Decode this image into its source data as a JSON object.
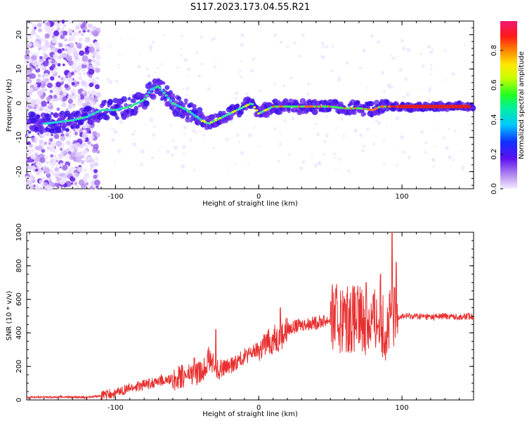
{
  "title": "S117.2023.173.04.55.R21",
  "colors": {
    "snr_line": "#e83030",
    "spectrogram_low": "#a070e0",
    "spectrogram_high": "#e02020"
  },
  "chart_data": [
    {
      "type": "heatmap",
      "title": "S117.2023.173.04.55.R21",
      "xlabel": "Height of straight line (km)",
      "ylabel": "Frequency (Hz)",
      "xlim": [
        -162,
        150
      ],
      "ylim": [
        -25,
        24
      ],
      "xticks": [
        -100,
        0,
        100
      ],
      "yticks": [
        -20,
        -10,
        0,
        10,
        20
      ],
      "grid": false,
      "colorbar": {
        "label": "Normalized spectral amplitude",
        "range": [
          0,
          0.97
        ],
        "ticks": [
          0.0,
          0.2,
          0.4,
          0.6,
          0.8
        ],
        "colormap": "rainbow (purple → blue → cyan → green → yellow → orange → red → pink)"
      },
      "ridge": {
        "x": [
          -160,
          -150,
          -140,
          -130,
          -120,
          -110,
          -100,
          -90,
          -80,
          -75,
          -70,
          -60,
          -50,
          -40,
          -35,
          -30,
          -20,
          -10,
          -5,
          0,
          10,
          20,
          30,
          40,
          50,
          60,
          70,
          80,
          85,
          90,
          95,
          100,
          110,
          120,
          130,
          140,
          150
        ],
        "y": [
          -6,
          -6,
          -5.5,
          -5,
          -4,
          -2,
          -2,
          -1,
          1,
          4,
          5,
          0,
          -2,
          -5,
          -6,
          -5,
          -3,
          -1,
          0,
          -3,
          -1,
          -1,
          -1,
          -1,
          -1,
          -1.5,
          -1.5,
          -2,
          -1,
          -1,
          -1,
          -1,
          -1,
          -1,
          -1,
          -1,
          -1
        ]
      }
    },
    {
      "type": "line",
      "xlabel": "Height of straight line (km)",
      "ylabel": "SNR (10 * v/v)",
      "xlim": [
        -162,
        150
      ],
      "ylim": [
        0,
        1000
      ],
      "xticks": [
        -100,
        0,
        100
      ],
      "yticks": [
        0,
        200,
        400,
        600,
        800,
        1000
      ],
      "grid": false,
      "envelope": {
        "x": [
          -162,
          -140,
          -120,
          -110,
          -100,
          -90,
          -80,
          -70,
          -60,
          -50,
          -40,
          -35,
          -30,
          -20,
          -10,
          0,
          10,
          15,
          20,
          30,
          40,
          50,
          60,
          70,
          80,
          85,
          90,
          93,
          97,
          100,
          110,
          120,
          130,
          140,
          150
        ],
        "y": [
          15,
          18,
          15,
          25,
          40,
          70,
          90,
          110,
          120,
          150,
          160,
          250,
          180,
          200,
          260,
          300,
          360,
          380,
          420,
          450,
          460,
          480,
          490,
          480,
          470,
          480,
          420,
          500,
          500,
          500,
          500,
          495,
          500,
          495,
          500
        ]
      },
      "spikes": [
        {
          "x": -68,
          "y": 150
        },
        {
          "x": -45,
          "y": 250
        },
        {
          "x": -30,
          "y": 420
        },
        {
          "x": 5,
          "y": 370
        },
        {
          "x": 15,
          "y": 550
        },
        {
          "x": 60,
          "y": 600
        },
        {
          "x": 75,
          "y": 700
        },
        {
          "x": 85,
          "y": 750
        },
        {
          "x": 93,
          "y": 1000
        },
        {
          "x": 96,
          "y": 820
        }
      ]
    }
  ]
}
